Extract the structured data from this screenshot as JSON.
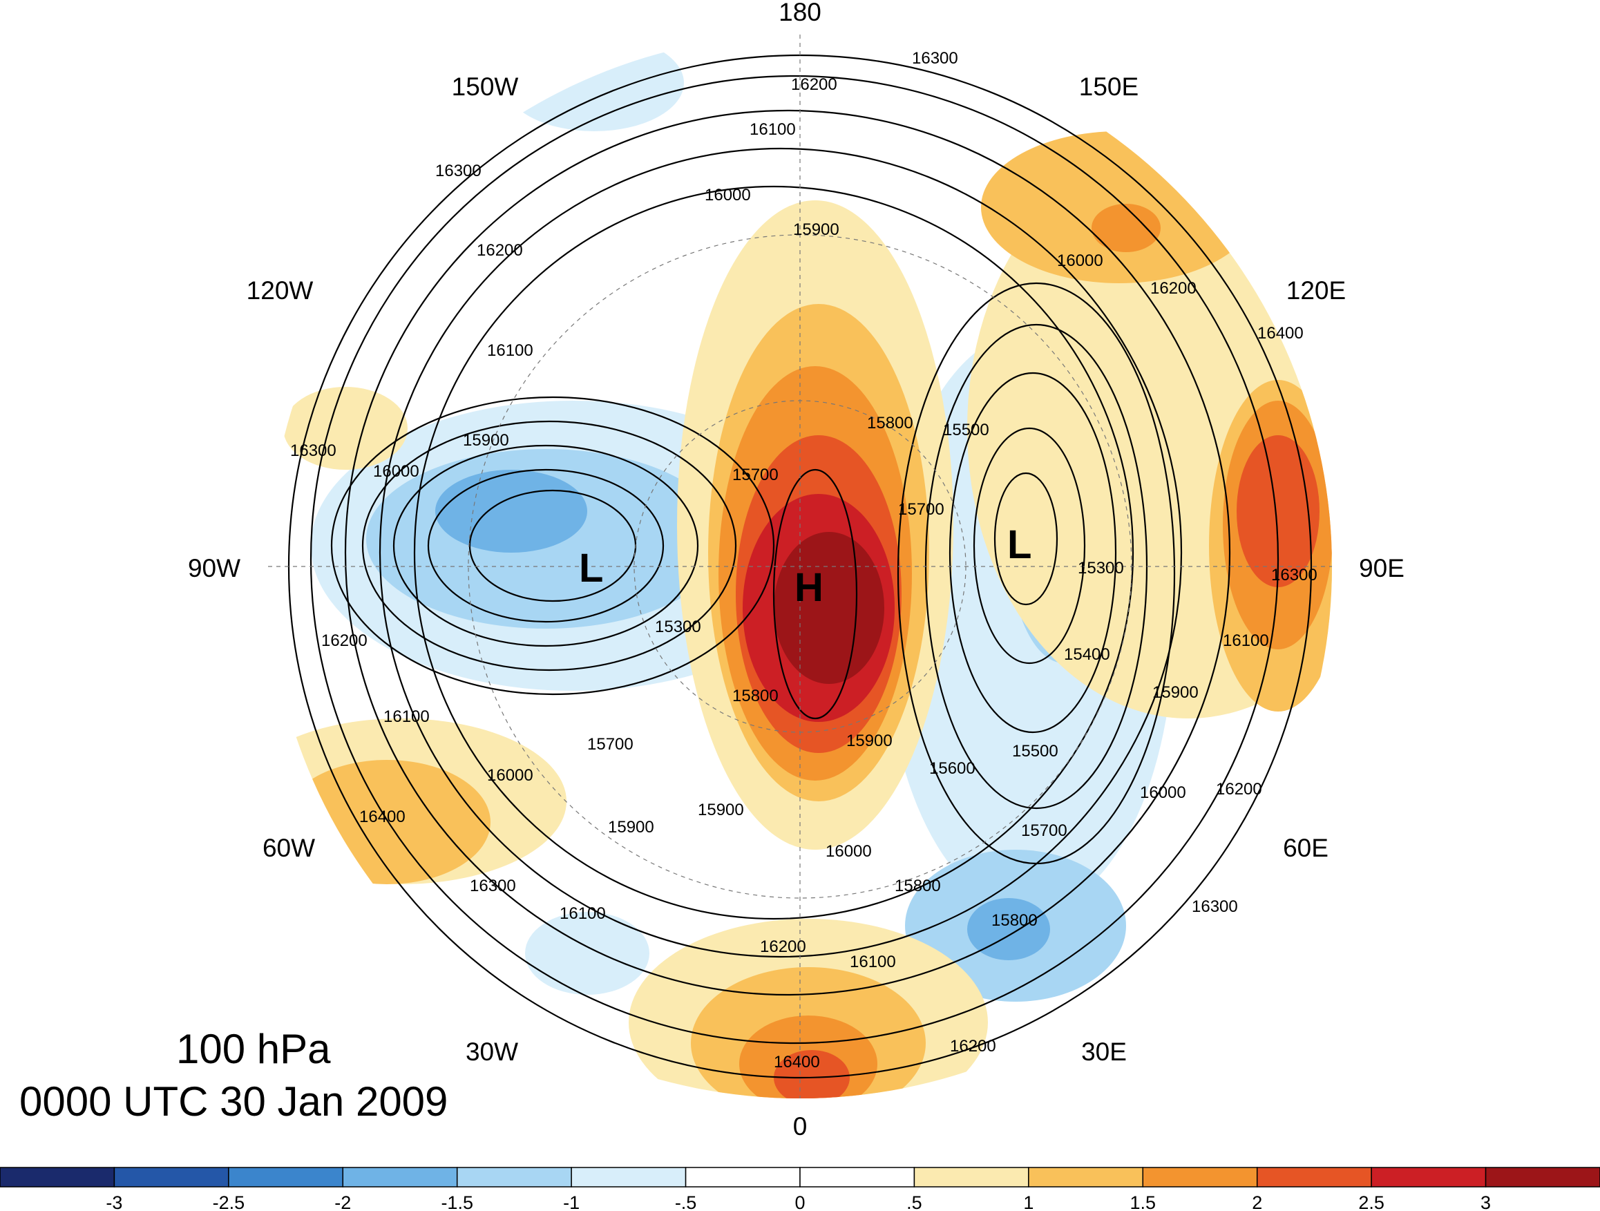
{
  "title": {
    "level": "100 hPa",
    "time": "0000 UTC 30 Jan 2009"
  },
  "longitude_labels": [
    "180",
    "150E",
    "120E",
    "90E",
    "60E",
    "30E",
    "0",
    "30W",
    "60W",
    "90W",
    "120W",
    "150W"
  ],
  "pressure_centers": [
    {
      "type": "low",
      "label": "L"
    },
    {
      "type": "high",
      "label": "H"
    },
    {
      "type": "low",
      "label": "L"
    }
  ],
  "height_contour_labels": [
    "16300",
    "16200",
    "16100",
    "16000",
    "15900",
    "16300",
    "16200",
    "16100",
    "15900",
    "16000",
    "16300",
    "15700",
    "15300",
    "15800",
    "15500",
    "15700",
    "16000",
    "16200",
    "16400",
    "16300",
    "15300",
    "15400",
    "16100",
    "16200",
    "16100",
    "15700",
    "16000",
    "15900",
    "15900",
    "15800",
    "15900",
    "16000",
    "15600",
    "15500",
    "15700",
    "15800",
    "16000",
    "16200",
    "16300",
    "15800",
    "16400",
    "16300",
    "16100",
    "16200",
    "16100",
    "16200",
    "16400",
    "15900"
  ],
  "colorbar": {
    "ticks": [
      "-3",
      "-2.5",
      "-2",
      "-1.5",
      "-1",
      "-.5",
      "0",
      ".5",
      "1",
      "1.5",
      "2",
      "2.5",
      "3"
    ],
    "colors": [
      "#1a2a6c",
      "#2457a8",
      "#3b85cc",
      "#6fb3e6",
      "#a8d6f3",
      "#d8eefa",
      "#ffffff",
      "#ffffff",
      "#fbeab0",
      "#f9c15a",
      "#f3942f",
      "#e65525",
      "#cc1f25",
      "#9c1518"
    ]
  },
  "anomaly_field": {
    "colors": {
      "strong_negative": "#6fb3e6",
      "negative": "#a8d6f3",
      "weak_negative": "#d8eefa",
      "weak_positive": "#fbeab0",
      "positive": "#f9c15a",
      "strong_positive": "#f3942f",
      "very_strong_positive": "#e65525",
      "extreme_positive": "#cc1f25",
      "max_positive": "#9c1518"
    }
  }
}
